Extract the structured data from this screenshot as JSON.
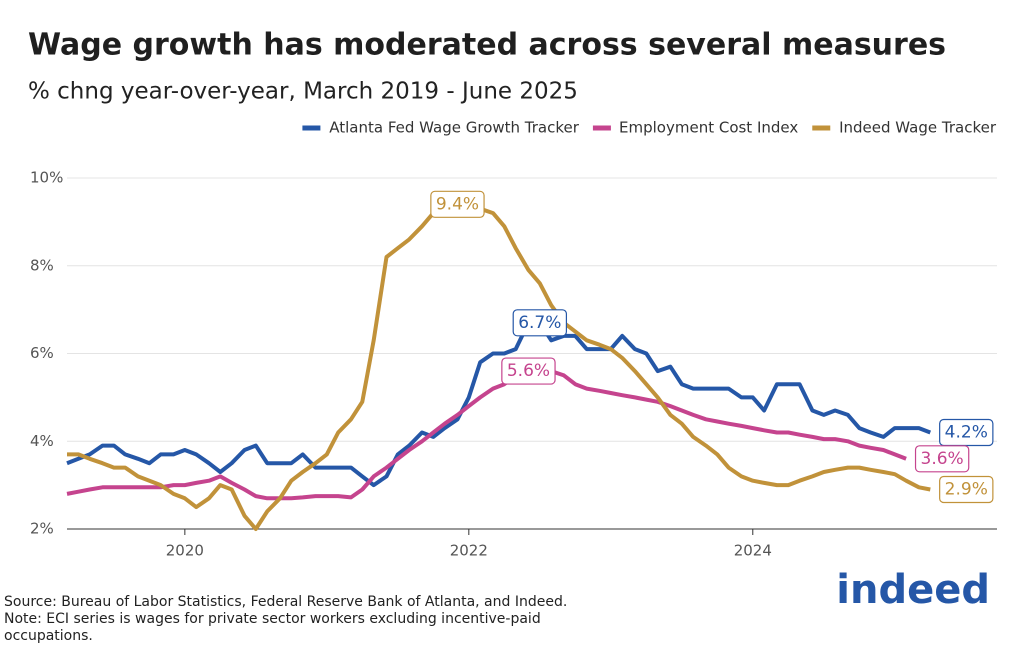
{
  "logo": "indeed",
  "chart_data": {
    "type": "line",
    "title": "Wage growth has moderated across several measures",
    "subtitle": "% chng year-over-year, March 2019 - June 2025",
    "note": "Source: Bureau of Labor Statistics, Federal Reserve Bank of Atlanta, and Indeed. Note: ECI series is wages for private sector workers excluding incentive-paid occupations.",
    "x": [
      2019.17,
      2019.25,
      2019.33,
      2019.42,
      2019.5,
      2019.58,
      2019.67,
      2019.75,
      2019.83,
      2019.92,
      2020.0,
      2020.08,
      2020.17,
      2020.25,
      2020.33,
      2020.42,
      2020.5,
      2020.58,
      2020.67,
      2020.75,
      2020.83,
      2020.92,
      2021.0,
      2021.08,
      2021.17,
      2021.25,
      2021.33,
      2021.42,
      2021.5,
      2021.58,
      2021.67,
      2021.75,
      2021.83,
      2021.92,
      2022.0,
      2022.08,
      2022.17,
      2022.25,
      2022.33,
      2022.42,
      2022.5,
      2022.58,
      2022.67,
      2022.75,
      2022.83,
      2022.92,
      2023.0,
      2023.08,
      2023.17,
      2023.25,
      2023.33,
      2023.42,
      2023.5,
      2023.58,
      2023.67,
      2023.75,
      2023.83,
      2023.92,
      2024.0,
      2024.08,
      2024.17,
      2024.25,
      2024.33,
      2024.42,
      2024.5,
      2024.58,
      2024.67,
      2024.75,
      2024.83,
      2024.92,
      2025.0,
      2025.08,
      2025.17,
      2025.25
    ],
    "xlim": [
      2019.17,
      2025.72
    ],
    "xticks": [
      2020,
      2022,
      2024
    ],
    "ylim": [
      2,
      10
    ],
    "yticks": [
      {
        "value": 2,
        "label": "2%"
      },
      {
        "value": 4,
        "label": "4%"
      },
      {
        "value": 6,
        "label": "6%"
      },
      {
        "value": 8,
        "label": "8%"
      },
      {
        "value": 10,
        "label": "10%"
      }
    ],
    "grid": true,
    "legend": "top-right",
    "series": [
      {
        "name": "Atlanta Fed Wage Growth Tracker",
        "color": "#2557a7",
        "values": [
          3.5,
          3.6,
          3.7,
          3.9,
          3.9,
          3.7,
          3.6,
          3.5,
          3.7,
          3.7,
          3.8,
          3.7,
          3.5,
          3.3,
          3.5,
          3.8,
          3.9,
          3.5,
          3.5,
          3.5,
          3.7,
          3.4,
          3.4,
          3.4,
          3.4,
          3.2,
          3.0,
          3.2,
          3.7,
          3.9,
          4.2,
          4.1,
          4.3,
          4.5,
          5.0,
          5.8,
          6.0,
          6.0,
          6.1,
          6.7,
          6.7,
          6.3,
          6.4,
          6.4,
          6.1,
          6.1,
          6.1,
          6.4,
          6.1,
          6.0,
          5.6,
          5.7,
          5.3,
          5.2,
          5.2,
          5.2,
          5.2,
          5.0,
          5.0,
          4.7,
          5.3,
          5.3,
          5.3,
          4.7,
          4.6,
          4.7,
          4.6,
          4.3,
          4.2,
          4.1,
          4.3,
          4.3,
          4.3,
          4.2
        ],
        "value_labels": [
          null,
          null,
          null,
          null,
          null,
          null,
          null,
          null,
          null,
          null,
          null,
          null,
          null,
          null,
          null,
          null,
          null,
          null,
          null,
          null,
          null,
          null,
          null,
          null,
          null,
          null,
          null,
          null,
          null,
          null,
          null,
          null,
          null,
          null,
          null,
          null,
          null,
          null,
          null,
          null,
          "6.7%",
          null,
          null,
          null,
          null,
          null,
          null,
          null,
          null,
          null,
          null,
          null,
          null,
          null,
          null,
          null,
          null,
          null,
          null,
          null,
          null,
          null,
          null,
          null,
          null,
          null,
          null,
          null,
          null,
          null,
          null,
          null,
          null,
          "4.2%"
        ]
      },
      {
        "name": "Employment Cost Index",
        "color": "#c5448e",
        "values": [
          2.8,
          2.85,
          2.9,
          2.95,
          2.95,
          2.95,
          2.95,
          2.95,
          2.95,
          3.0,
          3.0,
          3.05,
          3.1,
          3.2,
          3.05,
          2.9,
          2.75,
          2.7,
          2.7,
          2.7,
          2.72,
          2.75,
          2.75,
          2.75,
          2.72,
          2.9,
          3.2,
          3.4,
          3.6,
          3.8,
          4.0,
          4.2,
          4.4,
          4.6,
          4.8,
          5.0,
          5.2,
          5.3,
          5.5,
          5.6,
          5.6,
          5.6,
          5.5,
          5.3,
          5.2,
          5.15,
          5.1,
          5.05,
          5.0,
          4.95,
          4.9,
          4.8,
          4.7,
          4.6,
          4.5,
          4.45,
          4.4,
          4.35,
          4.3,
          4.25,
          4.2,
          4.2,
          4.15,
          4.1,
          4.05,
          4.05,
          4.0,
          3.9,
          3.85,
          3.8,
          3.7,
          3.6,
          null,
          null
        ],
        "value_labels": [
          null,
          null,
          null,
          null,
          null,
          null,
          null,
          null,
          null,
          null,
          null,
          null,
          null,
          null,
          null,
          null,
          null,
          null,
          null,
          null,
          null,
          null,
          null,
          null,
          null,
          null,
          null,
          null,
          null,
          null,
          null,
          null,
          null,
          null,
          null,
          null,
          null,
          null,
          null,
          "5.6%",
          null,
          null,
          null,
          null,
          null,
          null,
          null,
          null,
          null,
          null,
          null,
          null,
          null,
          null,
          null,
          null,
          null,
          null,
          null,
          null,
          null,
          null,
          null,
          null,
          null,
          null,
          null,
          null,
          null,
          null,
          null,
          "3.6%",
          null,
          null
        ]
      },
      {
        "name": "Indeed Wage Tracker",
        "color": "#c1923a",
        "values": [
          3.7,
          3.7,
          3.6,
          3.5,
          3.4,
          3.4,
          3.2,
          3.1,
          3.0,
          2.8,
          2.7,
          2.5,
          2.7,
          3.0,
          2.9,
          2.3,
          2.0,
          2.4,
          2.7,
          3.1,
          3.3,
          3.5,
          3.7,
          4.2,
          4.5,
          4.9,
          6.3,
          8.2,
          8.4,
          8.6,
          8.9,
          9.2,
          9.4,
          9.4,
          9.4,
          9.3,
          9.2,
          8.9,
          8.4,
          7.9,
          7.6,
          7.1,
          6.7,
          6.5,
          6.3,
          6.2,
          6.1,
          5.9,
          5.6,
          5.3,
          5.0,
          4.6,
          4.4,
          4.1,
          3.9,
          3.7,
          3.4,
          3.2,
          3.1,
          3.05,
          3.0,
          3.0,
          3.1,
          3.2,
          3.3,
          3.35,
          3.4,
          3.4,
          3.35,
          3.3,
          3.25,
          3.1,
          2.95,
          2.9
        ],
        "value_labels": [
          null,
          null,
          null,
          null,
          null,
          null,
          null,
          null,
          null,
          null,
          null,
          null,
          null,
          null,
          null,
          null,
          null,
          null,
          null,
          null,
          null,
          null,
          null,
          null,
          null,
          null,
          null,
          null,
          null,
          null,
          null,
          null,
          null,
          "9.4%",
          null,
          null,
          null,
          null,
          null,
          null,
          null,
          null,
          null,
          null,
          null,
          null,
          null,
          null,
          null,
          null,
          null,
          null,
          null,
          null,
          null,
          null,
          null,
          null,
          null,
          null,
          null,
          null,
          null,
          null,
          null,
          null,
          null,
          null,
          null,
          null,
          null,
          null,
          null,
          "2.9%"
        ]
      }
    ]
  }
}
